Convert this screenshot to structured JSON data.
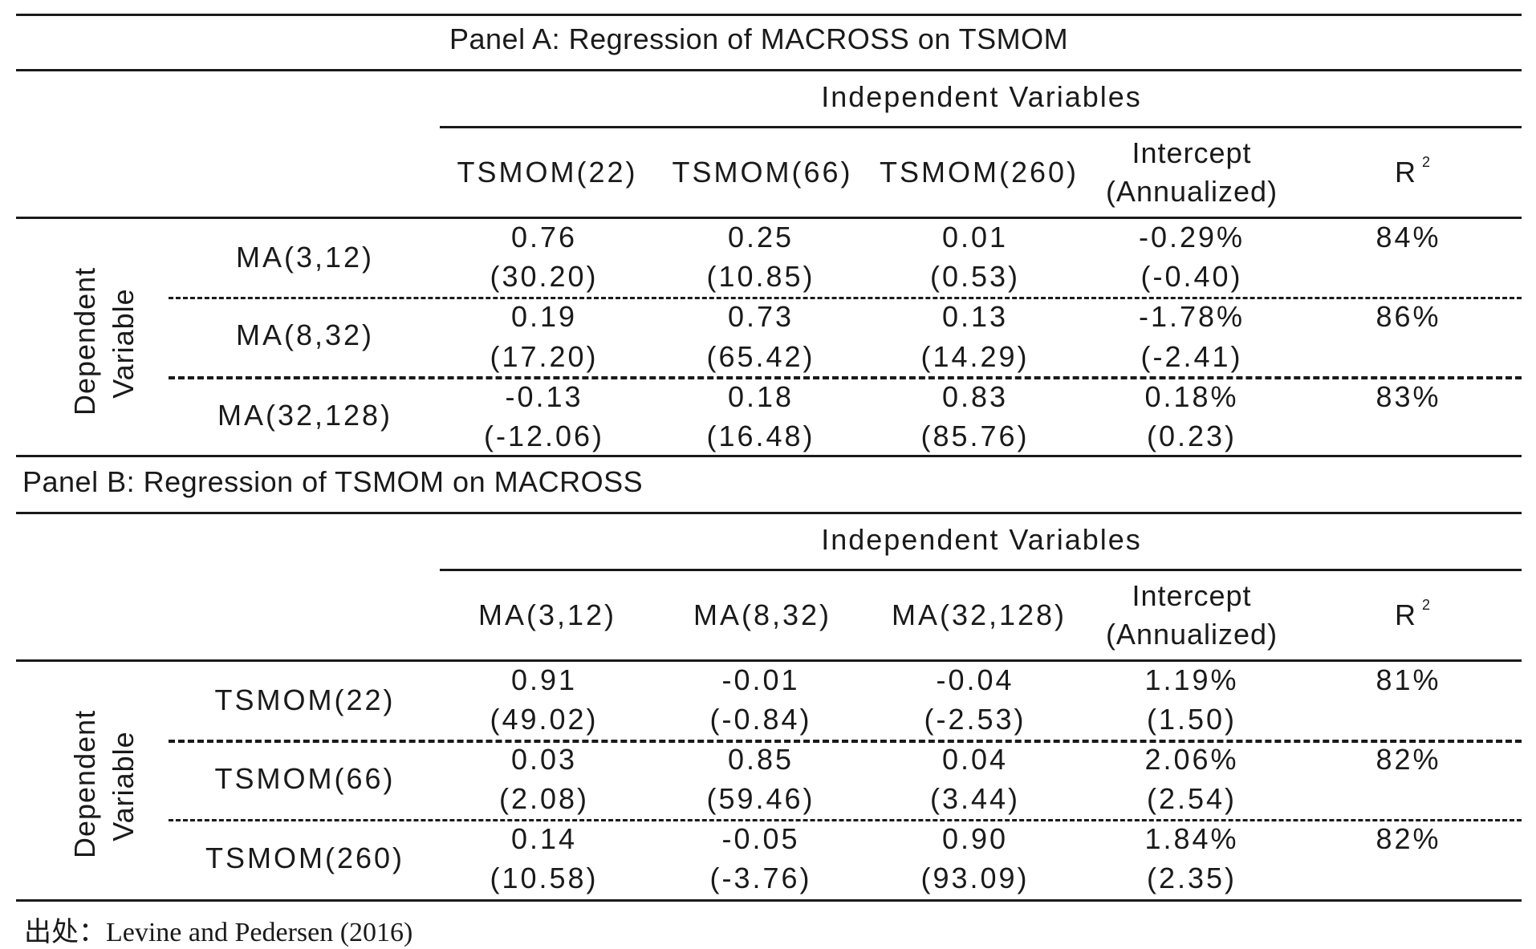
{
  "panel_a": {
    "title": "Panel A: Regression of MACROSS on TSMOM",
    "independent_label": "Independent Variables",
    "dependent_label_line1": "Dependent",
    "dependent_label_line2": "Variable",
    "columns": [
      "TSMOM(22)",
      "TSMOM(66)",
      "TSMOM(260)"
    ],
    "intercept_line1": "Intercept",
    "intercept_line2": "(Annualized)",
    "r2_label": "R",
    "r2_sup": "2",
    "rows": [
      {
        "label": "MA(3,12)",
        "coef": [
          "0.76",
          "0.25",
          "0.01",
          "-0.29%"
        ],
        "tstat": [
          "(30.20)",
          "(10.85)",
          "(0.53)",
          "(-0.40)"
        ],
        "r2": "84%"
      },
      {
        "label": "MA(8,32)",
        "coef": [
          "0.19",
          "0.73",
          "0.13",
          "-1.78%"
        ],
        "tstat": [
          "(17.20)",
          "(65.42)",
          "(14.29)",
          "(-2.41)"
        ],
        "r2": "86%"
      },
      {
        "label": "MA(32,128)",
        "coef": [
          "-0.13",
          "0.18",
          "0.83",
          "0.18%"
        ],
        "tstat": [
          "(-12.06)",
          "(16.48)",
          "(85.76)",
          "(0.23)"
        ],
        "r2": "83%"
      }
    ]
  },
  "panel_b": {
    "title": "Panel B: Regression of TSMOM on MACROSS",
    "independent_label": "Independent Variables",
    "dependent_label_line1": "Dependent",
    "dependent_label_line2": "Variable",
    "columns": [
      "MA(3,12)",
      "MA(8,32)",
      "MA(32,128)"
    ],
    "intercept_line1": "Intercept",
    "intercept_line2": "(Annualized)",
    "r2_label": "R",
    "r2_sup": "2",
    "rows": [
      {
        "label": "TSMOM(22)",
        "coef": [
          "0.91",
          "-0.01",
          "-0.04",
          "1.19%"
        ],
        "tstat": [
          "(49.02)",
          "(-0.84)",
          "(-2.53)",
          "(1.50)"
        ],
        "r2": "81%"
      },
      {
        "label": "TSMOM(66)",
        "coef": [
          "0.03",
          "0.85",
          "0.04",
          "2.06%"
        ],
        "tstat": [
          "(2.08)",
          "(59.46)",
          "(3.44)",
          "(2.54)"
        ],
        "r2": "82%"
      },
      {
        "label": "TSMOM(260)",
        "coef": [
          "0.14",
          "-0.05",
          "0.90",
          "1.84%"
        ],
        "tstat": [
          "(10.58)",
          "(-3.76)",
          "(93.09)",
          "(2.35)"
        ],
        "r2": "82%"
      }
    ]
  },
  "source": "出处：Levine and Pedersen (2016)"
}
